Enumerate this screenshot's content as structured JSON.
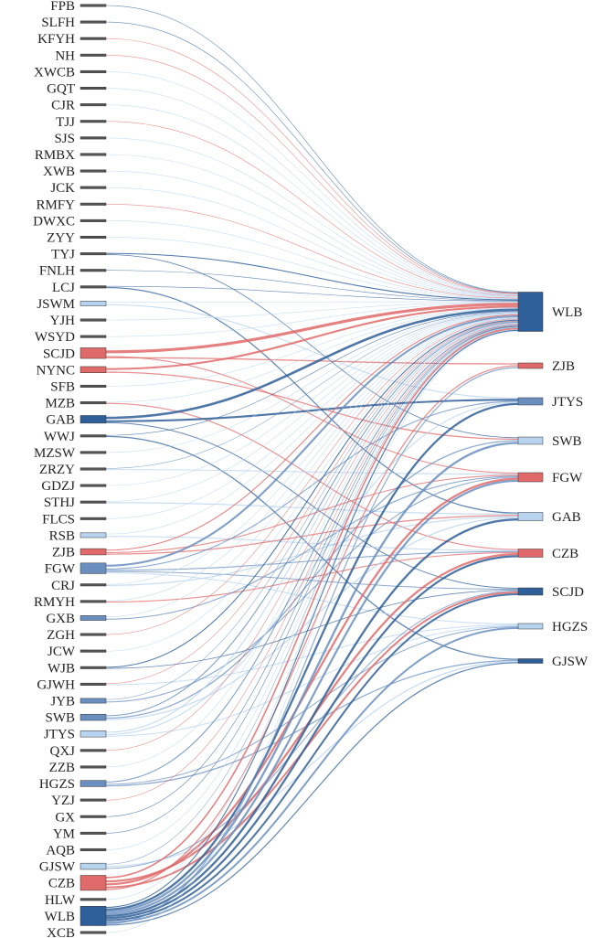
{
  "colors": {
    "dark_blue": "#2f5f98",
    "mid_blue": "#6a8fbf",
    "light_blue": "#b7d3ee",
    "red": "#e06a6a",
    "gray": "#555555"
  },
  "left_nodes": [
    {
      "label": "FPB",
      "color": "gray",
      "value": 1
    },
    {
      "label": "SLFH",
      "color": "gray",
      "value": 1
    },
    {
      "label": "KFYH",
      "color": "gray",
      "value": 1
    },
    {
      "label": "NH",
      "color": "gray",
      "value": 1
    },
    {
      "label": "XWCB",
      "color": "gray",
      "value": 1
    },
    {
      "label": "GQT",
      "color": "gray",
      "value": 1
    },
    {
      "label": "CJR",
      "color": "gray",
      "value": 1
    },
    {
      "label": "TJJ",
      "color": "gray",
      "value": 1
    },
    {
      "label": "SJS",
      "color": "gray",
      "value": 1
    },
    {
      "label": "RMBX",
      "color": "gray",
      "value": 1
    },
    {
      "label": "XWB",
      "color": "gray",
      "value": 1
    },
    {
      "label": "JCK",
      "color": "gray",
      "value": 1
    },
    {
      "label": "RMFY",
      "color": "gray",
      "value": 1
    },
    {
      "label": "DWXC",
      "color": "gray",
      "value": 1
    },
    {
      "label": "ZYY",
      "color": "gray",
      "value": 1
    },
    {
      "label": "TYJ",
      "color": "gray",
      "value": 1
    },
    {
      "label": "FNLH",
      "color": "gray",
      "value": 1
    },
    {
      "label": "LCJ",
      "color": "gray",
      "value": 1
    },
    {
      "label": "JSWM",
      "color": "light_blue",
      "value": 2
    },
    {
      "label": "YJH",
      "color": "gray",
      "value": 1
    },
    {
      "label": "WSYD",
      "color": "gray",
      "value": 1
    },
    {
      "label": "SCJD",
      "color": "red",
      "value": 6
    },
    {
      "label": "NYNC",
      "color": "red",
      "value": 3
    },
    {
      "label": "SFB",
      "color": "gray",
      "value": 1
    },
    {
      "label": "MZB",
      "color": "gray",
      "value": 1
    },
    {
      "label": "GAB",
      "color": "dark_blue",
      "value": 4
    },
    {
      "label": "WWJ",
      "color": "gray",
      "value": 1
    },
    {
      "label": "MZSW",
      "color": "gray",
      "value": 1
    },
    {
      "label": "ZRZY",
      "color": "gray",
      "value": 1
    },
    {
      "label": "GDZJ",
      "color": "gray",
      "value": 1
    },
    {
      "label": "STHJ",
      "color": "gray",
      "value": 1
    },
    {
      "label": "FLCS",
      "color": "gray",
      "value": 1
    },
    {
      "label": "RSB",
      "color": "light_blue",
      "value": 2
    },
    {
      "label": "ZJB",
      "color": "red",
      "value": 3
    },
    {
      "label": "FGW",
      "color": "mid_blue",
      "value": 6
    },
    {
      "label": "CRJ",
      "color": "gray",
      "value": 1
    },
    {
      "label": "RMYH",
      "color": "gray",
      "value": 1
    },
    {
      "label": "GXB",
      "color": "mid_blue",
      "value": 2
    },
    {
      "label": "ZGH",
      "color": "gray",
      "value": 1
    },
    {
      "label": "JCW",
      "color": "gray",
      "value": 1
    },
    {
      "label": "WJB",
      "color": "gray",
      "value": 1
    },
    {
      "label": "GJWH",
      "color": "gray",
      "value": 1
    },
    {
      "label": "JYB",
      "color": "mid_blue",
      "value": 2
    },
    {
      "label": "SWB",
      "color": "mid_blue",
      "value": 3
    },
    {
      "label": "JTYS",
      "color": "light_blue",
      "value": 3
    },
    {
      "label": "QXJ",
      "color": "gray",
      "value": 1
    },
    {
      "label": "ZZB",
      "color": "gray",
      "value": 1
    },
    {
      "label": "HGZS",
      "color": "mid_blue",
      "value": 3
    },
    {
      "label": "YZJ",
      "color": "gray",
      "value": 1
    },
    {
      "label": "GX",
      "color": "gray",
      "value": 1
    },
    {
      "label": "YM",
      "color": "gray",
      "value": 1
    },
    {
      "label": "AQB",
      "color": "gray",
      "value": 1
    },
    {
      "label": "GJSW",
      "color": "light_blue",
      "value": 3
    },
    {
      "label": "CZB",
      "color": "red",
      "value": 9
    },
    {
      "label": "HLW",
      "color": "gray",
      "value": 1
    },
    {
      "label": "WLB",
      "color": "dark_blue",
      "value": 12
    },
    {
      "label": "XCB",
      "color": "gray",
      "value": 1
    }
  ],
  "right_nodes": [
    {
      "label": "WLB",
      "color": "dark_blue",
      "value": 40
    },
    {
      "label": "ZJB",
      "color": "red",
      "value": 6
    },
    {
      "label": "JTYS",
      "color": "mid_blue",
      "value": 8
    },
    {
      "label": "SWB",
      "color": "light_blue",
      "value": 8
    },
    {
      "label": "FGW",
      "color": "red",
      "value": 10
    },
    {
      "label": "GAB",
      "color": "light_blue",
      "value": 9
    },
    {
      "label": "CZB",
      "color": "red",
      "value": 9
    },
    {
      "label": "SCJD",
      "color": "dark_blue",
      "value": 8
    },
    {
      "label": "HGZS",
      "color": "light_blue",
      "value": 6
    },
    {
      "label": "GJSW",
      "color": "dark_blue",
      "value": 5
    }
  ],
  "links": [
    [
      "FPB",
      "WLB",
      1,
      "dark_blue"
    ],
    [
      "SLFH",
      "WLB",
      1,
      "dark_blue"
    ],
    [
      "KFYH",
      "WLB",
      1,
      "red"
    ],
    [
      "NH",
      "WLB",
      1,
      "red"
    ],
    [
      "XWCB",
      "WLB",
      1,
      "light_blue"
    ],
    [
      "GQT",
      "WLB",
      1,
      "light_blue"
    ],
    [
      "CJR",
      "WLB",
      1,
      "light_blue"
    ],
    [
      "TJJ",
      "WLB",
      1,
      "red"
    ],
    [
      "SJS",
      "WLB",
      1,
      "light_blue"
    ],
    [
      "RMBX",
      "WLB",
      1,
      "light_blue"
    ],
    [
      "XWB",
      "WLB",
      1,
      "light_blue"
    ],
    [
      "JCK",
      "WLB",
      1,
      "light_blue"
    ],
    [
      "RMFY",
      "WLB",
      1,
      "red"
    ],
    [
      "DWXC",
      "WLB",
      1,
      "light_blue"
    ],
    [
      "ZYY",
      "WLB",
      1,
      "light_blue"
    ],
    [
      "TYJ",
      "WLB",
      2,
      "dark_blue"
    ],
    [
      "TYJ",
      "SWB",
      1,
      "dark_blue"
    ],
    [
      "FNLH",
      "WLB",
      1,
      "dark_blue"
    ],
    [
      "LCJ",
      "WLB",
      1,
      "dark_blue"
    ],
    [
      "LCJ",
      "GAB",
      1,
      "dark_blue"
    ],
    [
      "JSWM",
      "WLB",
      1,
      "light_blue"
    ],
    [
      "JSWM",
      "JTYS",
      1,
      "light_blue"
    ],
    [
      "YJH",
      "WLB",
      1,
      "light_blue"
    ],
    [
      "WSYD",
      "WLB",
      1,
      "light_blue"
    ],
    [
      "SCJD",
      "WLB",
      6,
      "red"
    ],
    [
      "SCJD",
      "FGW",
      1,
      "red"
    ],
    [
      "SCJD",
      "ZJB",
      1,
      "red"
    ],
    [
      "NYNC",
      "WLB",
      4,
      "red"
    ],
    [
      "NYNC",
      "SWB",
      1,
      "red"
    ],
    [
      "SFB",
      "WLB",
      1,
      "light_blue"
    ],
    [
      "MZB",
      "WLB",
      1,
      "light_blue"
    ],
    [
      "MZB",
      "CZB",
      1,
      "red"
    ],
    [
      "GAB",
      "WLB",
      5,
      "dark_blue"
    ],
    [
      "GAB",
      "JTYS",
      2,
      "dark_blue"
    ],
    [
      "GAB",
      "SCJD",
      1,
      "dark_blue"
    ],
    [
      "WWJ",
      "WLB",
      1,
      "dark_blue"
    ],
    [
      "WWJ",
      "GJSW",
      1,
      "dark_blue"
    ],
    [
      "MZSW",
      "WLB",
      1,
      "light_blue"
    ],
    [
      "ZRZY",
      "WLB",
      1,
      "mid_blue"
    ],
    [
      "ZRZY",
      "FGW",
      1,
      "light_blue"
    ],
    [
      "GDZJ",
      "WLB",
      1,
      "light_blue"
    ],
    [
      "STHJ",
      "WLB",
      1,
      "light_blue"
    ],
    [
      "STHJ",
      "GAB",
      1,
      "light_blue"
    ],
    [
      "FLCS",
      "WLB",
      1,
      "light_blue"
    ],
    [
      "RSB",
      "WLB",
      1,
      "light_blue"
    ],
    [
      "RSB",
      "CZB",
      1,
      "light_blue"
    ],
    [
      "ZJB",
      "WLB",
      2,
      "red"
    ],
    [
      "ZJB",
      "FGW",
      1,
      "red"
    ],
    [
      "ZJB",
      "GAB",
      1,
      "red"
    ],
    [
      "FGW",
      "WLB",
      4,
      "mid_blue"
    ],
    [
      "FGW",
      "JTYS",
      1,
      "mid_blue"
    ],
    [
      "FGW",
      "CZB",
      1,
      "mid_blue"
    ],
    [
      "FGW",
      "SCJD",
      1,
      "mid_blue"
    ],
    [
      "FGW",
      "HGZS",
      1,
      "light_blue"
    ],
    [
      "CRJ",
      "WLB",
      1,
      "light_blue"
    ],
    [
      "CRJ",
      "GAB",
      1,
      "light_blue"
    ],
    [
      "RMYH",
      "WLB",
      1,
      "light_blue"
    ],
    [
      "RMYH",
      "CZB",
      1,
      "red"
    ],
    [
      "GXB",
      "WLB",
      1,
      "light_blue"
    ],
    [
      "GXB",
      "FGW",
      1,
      "mid_blue"
    ],
    [
      "ZGH",
      "WLB",
      1,
      "red"
    ],
    [
      "JCW",
      "WLB",
      1,
      "light_blue"
    ],
    [
      "WJB",
      "WLB",
      2,
      "dark_blue"
    ],
    [
      "WJB",
      "SCJD",
      1,
      "dark_blue"
    ],
    [
      "GJWH",
      "WLB",
      1,
      "red"
    ],
    [
      "GJWH",
      "HGZS",
      1,
      "light_blue"
    ],
    [
      "JYB",
      "WLB",
      1,
      "mid_blue"
    ],
    [
      "JYB",
      "FGW",
      1,
      "mid_blue"
    ],
    [
      "SWB",
      "WLB",
      2,
      "mid_blue"
    ],
    [
      "SWB",
      "SWB",
      1,
      "mid_blue"
    ],
    [
      "SWB",
      "GAB",
      1,
      "light_blue"
    ],
    [
      "JTYS",
      "WLB",
      2,
      "light_blue"
    ],
    [
      "JTYS",
      "JTYS",
      1,
      "light_blue"
    ],
    [
      "JTYS",
      "HGZS",
      1,
      "light_blue"
    ],
    [
      "QXJ",
      "WLB",
      1,
      "red"
    ],
    [
      "ZZB",
      "WLB",
      1,
      "light_blue"
    ],
    [
      "HGZS",
      "WLB",
      2,
      "mid_blue"
    ],
    [
      "HGZS",
      "HGZS",
      1,
      "mid_blue"
    ],
    [
      "HGZS",
      "GJSW",
      1,
      "mid_blue"
    ],
    [
      "YZJ",
      "WLB",
      1,
      "red"
    ],
    [
      "GX",
      "WLB",
      1,
      "dark_blue"
    ],
    [
      "YM",
      "WLB",
      1,
      "dark_blue"
    ],
    [
      "AQB",
      "WLB",
      1,
      "light_blue"
    ],
    [
      "GJSW",
      "WLB",
      1,
      "mid_blue"
    ],
    [
      "GJSW",
      "GJSW",
      1,
      "light_blue"
    ],
    [
      "GJSW",
      "SCJD",
      1,
      "mid_blue"
    ],
    [
      "CZB",
      "WLB",
      3,
      "red"
    ],
    [
      "CZB",
      "CZB",
      2,
      "red"
    ],
    [
      "CZB",
      "FGW",
      2,
      "red"
    ],
    [
      "CZB",
      "SCJD",
      2,
      "red"
    ],
    [
      "CZB",
      "ZJB",
      1,
      "red"
    ],
    [
      "HLW",
      "WLB",
      1,
      "light_blue"
    ],
    [
      "WLB",
      "WLB",
      2,
      "dark_blue"
    ],
    [
      "WLB",
      "JTYS",
      2,
      "dark_blue"
    ],
    [
      "WLB",
      "SWB",
      2,
      "mid_blue"
    ],
    [
      "WLB",
      "FGW",
      2,
      "mid_blue"
    ],
    [
      "WLB",
      "GAB",
      2,
      "dark_blue"
    ],
    [
      "WLB",
      "CZB",
      2,
      "dark_blue"
    ],
    [
      "WLB",
      "SCJD",
      2,
      "dark_blue"
    ],
    [
      "WLB",
      "HGZS",
      2,
      "mid_blue"
    ],
    [
      "WLB",
      "ZJB",
      1,
      "mid_blue"
    ],
    [
      "WLB",
      "GJSW",
      1,
      "dark_blue"
    ],
    [
      "XCB",
      "WLB",
      1,
      "light_blue"
    ]
  ]
}
